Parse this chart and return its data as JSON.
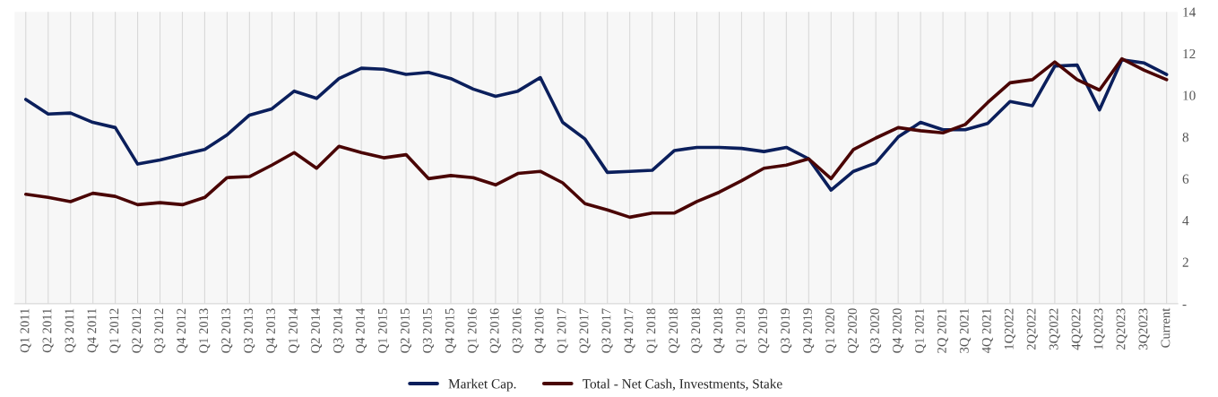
{
  "chart_data": {
    "type": "line",
    "categories": [
      "Q1 2011",
      "Q2 2011",
      "Q3 2011",
      "Q4 2011",
      "Q1 2012",
      "Q2 2012",
      "Q3 2012",
      "Q4 2012",
      "Q1 2013",
      "Q2 2013",
      "Q3 2013",
      "Q4 2013",
      "Q1 2014",
      "Q2 2014",
      "Q3 2014",
      "Q4 2014",
      "Q1 2015",
      "Q2 2015",
      "Q3 2015",
      "Q4 2015",
      "Q1 2016",
      "Q2 2016",
      "Q3 2016",
      "Q4 2016",
      "Q1 2017",
      "Q2 2017",
      "Q3 2017",
      "Q4 2017",
      "Q1 2018",
      "Q2 2018",
      "Q3 2018",
      "Q4 2018",
      "Q1 2019",
      "Q2 2019",
      "Q3 2019",
      "Q4 2019",
      "Q1 2020",
      "Q2 2020",
      "Q3 2020",
      "Q4 2020",
      "Q1 2021",
      "2Q 2021",
      "3Q 2021",
      "4Q 2021",
      "1Q2022",
      "2Q2022",
      "3Q2022",
      "4Q2022",
      "1Q2023",
      "2Q2023",
      "3Q2023",
      "Current"
    ],
    "series": [
      {
        "name": "Market Cap.",
        "color": "#0b1f5c",
        "values": [
          9.8,
          9.1,
          9.15,
          8.7,
          8.45,
          6.7,
          6.9,
          7.15,
          7.4,
          8.1,
          9.05,
          9.35,
          10.2,
          9.85,
          10.8,
          11.3,
          11.25,
          11.0,
          11.1,
          10.8,
          10.3,
          9.95,
          10.2,
          10.85,
          8.7,
          7.9,
          6.3,
          6.35,
          6.4,
          7.35,
          7.5,
          7.5,
          7.45,
          7.3,
          7.5,
          6.95,
          5.45,
          6.35,
          6.75,
          8.0,
          8.7,
          8.35,
          8.35,
          8.65,
          9.7,
          9.5,
          11.4,
          11.45,
          9.3,
          11.7,
          11.55,
          11.0
        ]
      },
      {
        "name": "Total - Net Cash, Investments, Stake",
        "color": "#4a0505",
        "values": [
          5.25,
          5.1,
          4.9,
          5.3,
          5.15,
          4.75,
          4.85,
          4.75,
          5.1,
          6.05,
          6.1,
          6.65,
          7.25,
          6.5,
          7.55,
          7.25,
          7.0,
          7.15,
          6.0,
          6.15,
          6.05,
          5.7,
          6.25,
          6.35,
          5.8,
          4.8,
          4.5,
          4.15,
          4.35,
          4.35,
          4.9,
          5.35,
          5.9,
          6.5,
          6.65,
          6.95,
          6.0,
          7.4,
          7.95,
          8.45,
          8.3,
          8.2,
          8.6,
          9.65,
          10.6,
          10.75,
          11.6,
          10.75,
          10.25,
          11.75,
          11.2,
          10.75
        ]
      }
    ],
    "ylim": [
      0,
      14
    ],
    "yticks": [
      {
        "value": 0,
        "label": "-"
      },
      2,
      4,
      6,
      8,
      10,
      12,
      14
    ],
    "grid": "x",
    "legend": "bottom",
    "line_style": "solid",
    "marker": "none"
  }
}
